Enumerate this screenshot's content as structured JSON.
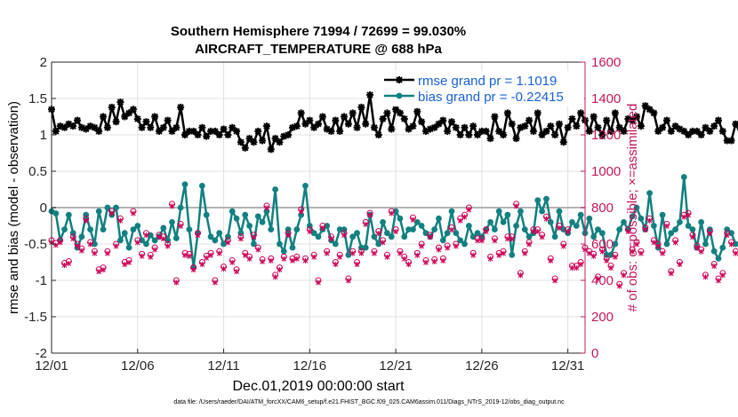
{
  "chart_data": {
    "type": "line",
    "title": [
      "Southern Hemisphere 71994 / 72699 = 99.030%",
      "AIRCRAFT_TEMPERATURE @ 688 hPa"
    ],
    "xlabel": "Dec.01,2019 00:00:00 start",
    "ylabel_left": "rmse and bias (model - observation)",
    "ylabel_right": "# of obs: o=possible; ×=assimilated",
    "x_ticks": [
      {
        "day": 1,
        "label": "12/01"
      },
      {
        "day": 6,
        "label": "12/06"
      },
      {
        "day": 11,
        "label": "12/11"
      },
      {
        "day": 16,
        "label": "12/16"
      },
      {
        "day": 21,
        "label": "12/21"
      },
      {
        "day": 26,
        "label": "12/26"
      },
      {
        "day": 31,
        "label": "12/31"
      }
    ],
    "xlim": [
      1,
      32
    ],
    "ylim_left": [
      -2,
      2
    ],
    "yticks_left": [
      "2",
      "1.5",
      "1",
      "0.5",
      "0",
      "-0.5",
      "-1",
      "-1.5",
      "-2"
    ],
    "ylim_right": [
      0,
      1600
    ],
    "yticks_right": [
      "1600",
      "1400",
      "1200",
      "1000",
      "800",
      "600",
      "400",
      "200",
      "0"
    ],
    "zero_line": 0,
    "legend": {
      "position": "top-right",
      "entries": [
        "rmse grand pr = 1.1019",
        "bias grand pr = -0.22415"
      ]
    },
    "series": [
      {
        "name": "rmse grand pr = 1.1019",
        "color": "#000000",
        "marker": "star",
        "axis": "left",
        "step_days": 0.25,
        "values": [
          1.35,
          1.05,
          1.12,
          1.1,
          1.15,
          1.12,
          1.2,
          1.1,
          1.08,
          1.12,
          1.1,
          1.05,
          1.25,
          1.1,
          1.38,
          1.18,
          1.45,
          1.25,
          1.3,
          1.35,
          1.22,
          1.1,
          1.18,
          1.1,
          1.25,
          1.05,
          1.1,
          1.2,
          1.05,
          1.1,
          1.38,
          1.0,
          1.05,
          1.05,
          1.0,
          1.1,
          0.98,
          1.05,
          1.05,
          1.0,
          1.08,
          1.0,
          1.1,
          1.05,
          0.9,
          0.82,
          0.95,
          0.9,
          1.05,
          0.92,
          1.12,
          0.8,
          0.95,
          0.9,
          0.98,
          1.0,
          1.1,
          1.12,
          1.3,
          1.15,
          1.2,
          1.1,
          1.15,
          1.25,
          1.08,
          1.05,
          1.2,
          1.05,
          1.25,
          1.15,
          1.3,
          1.1,
          1.38,
          1.15,
          1.55,
          1.1,
          1.0,
          1.22,
          1.3,
          1.08,
          1.35,
          1.3,
          1.22,
          1.08,
          1.12,
          1.32,
          1.18,
          1.05,
          1.08,
          1.1,
          1.15,
          1.2,
          1.05,
          1.18,
          1.1,
          1.0,
          1.1,
          1.0,
          1.12,
          1.0,
          1.05,
          1.05,
          0.95,
          1.25,
          1.05,
          1.0,
          1.3,
          1.15,
          0.95,
          1.1,
          1.12,
          1.2,
          1.05,
          1.3,
          1.0,
          1.05,
          1.12,
          1.0,
          1.15,
          0.9,
          1.1,
          1.22,
          1.12,
          1.3,
          1.2,
          1.05,
          1.25,
          1.1,
          1.0,
          1.2,
          1.05,
          1.3,
          1.1,
          1.05,
          1.22,
          1.2,
          1.25,
          1.12,
          1.4,
          1.35,
          1.3,
          1.05,
          1.1,
          1.2,
          1.05,
          1.12,
          1.08,
          1.05,
          1.0,
          1.05,
          1.05,
          1.0,
          1.1,
          1.05,
          1.12,
          1.2,
          1.05,
          0.92,
          0.92,
          1.15,
          1.1
        ]
      },
      {
        "name": "bias grand pr = -0.22415",
        "color": "#128080",
        "marker": "dot",
        "axis": "left",
        "step_days": 0.25,
        "values": [
          -0.05,
          -0.08,
          -0.45,
          -0.3,
          -0.1,
          -0.35,
          -0.55,
          -0.4,
          -0.1,
          -0.3,
          -0.5,
          -0.05,
          -0.3,
          0.0,
          -0.1,
          0.0,
          -0.45,
          -0.35,
          -0.55,
          -0.3,
          -0.25,
          -0.45,
          -0.5,
          -0.38,
          -0.45,
          -0.4,
          -0.28,
          -0.45,
          -0.2,
          -0.42,
          0.0,
          0.32,
          -0.3,
          -0.82,
          -0.35,
          0.3,
          -0.1,
          -0.4,
          -0.45,
          -0.35,
          -0.5,
          -0.4,
          -0.05,
          -0.15,
          -0.35,
          -0.1,
          -0.25,
          -0.5,
          -0.12,
          -0.2,
          -0.05,
          -0.3,
          0.25,
          -0.5,
          -0.6,
          -0.3,
          -0.55,
          -0.3,
          -0.1,
          0.3,
          -0.25,
          -0.35,
          -0.4,
          -0.3,
          -0.25,
          -0.45,
          -0.5,
          -0.3,
          -0.3,
          -0.65,
          -0.4,
          -0.35,
          -0.55,
          -0.55,
          -0.1,
          -0.4,
          -0.5,
          -0.2,
          -0.35,
          -0.4,
          -0.05,
          -0.15,
          -0.4,
          -0.3,
          -0.3,
          -0.2,
          -0.25,
          -0.35,
          -0.4,
          -0.3,
          -0.15,
          -0.45,
          -0.35,
          -0.05,
          -0.35,
          -0.45,
          -0.5,
          -0.25,
          -0.4,
          -0.35,
          -0.4,
          -0.3,
          -0.2,
          -0.3,
          -0.05,
          -0.2,
          -0.1,
          -0.65,
          -0.25,
          -0.05,
          -0.3,
          -0.4,
          -0.35,
          0.1,
          -0.05,
          0.12,
          -0.2,
          -0.4,
          -0.05,
          -0.3,
          -0.35,
          -0.2,
          -0.25,
          -0.1,
          -0.35,
          -0.15,
          -0.4,
          -0.3,
          -0.35,
          -0.65,
          -0.65,
          -0.5,
          -0.3,
          -0.2,
          -0.3,
          -0.12,
          0.0,
          -0.15,
          -0.3,
          0.2,
          -0.25,
          -0.55,
          -0.1,
          -0.5,
          -0.35,
          -0.3,
          -0.2,
          0.42,
          -0.25,
          -0.3,
          -0.55,
          -0.2,
          -0.5,
          -0.3,
          -0.6,
          -0.7,
          -0.55,
          -0.3,
          -0.35,
          -0.5
        ]
      },
      {
        "name": "possible",
        "color": "#cc0055",
        "marker": "circle",
        "axis": "right",
        "step_days": 0.25,
        "values": [
          620,
          605,
          620,
          495,
          505,
          640,
          600,
          575,
          740,
          610,
          560,
          460,
          470,
          560,
          780,
          600,
          740,
          500,
          510,
          780,
          620,
          545,
          660,
          540,
          580,
          650,
          640,
          600,
          820,
          400,
          710,
          550,
          545,
          470,
          660,
          500,
          535,
          550,
          400,
          560,
          475,
          620,
          510,
          460,
          640,
          550,
          530,
          650,
          580,
          515,
          810,
          520,
          430,
          470,
          530,
          660,
          520,
          530,
          790,
          520,
          680,
          540,
          400,
          700,
          560,
          640,
          500,
          540,
          660,
          410,
          560,
          500,
          560,
          720,
          770,
          560,
          670,
          620,
          540,
          780,
          680,
          560,
          530,
          500,
          745,
          550,
          600,
          510,
          650,
          515,
          580,
          520,
          590,
          690,
          600,
          740,
          760,
          800,
          550,
          630,
          630,
          680,
          530,
          630,
          550,
          560,
          640,
          640,
          820,
          440,
          560,
          610,
          680,
          680,
          650,
          750,
          520,
          410,
          700,
          600,
          680,
          480,
          480,
          500,
          580,
          560,
          545,
          420,
          570,
          520,
          480,
          540,
          380,
          440,
          680,
          570,
          610,
          560,
          690,
          740,
          620,
          600,
          560,
          710,
          450,
          620,
          500,
          760,
          770,
          650,
          590,
          570,
          430,
          670,
          490,
          410,
          440,
          660,
          610,
          560
        ]
      },
      {
        "name": "assimilated",
        "color": "#cc0055",
        "marker": "x",
        "axis": "right",
        "step_days": 0.25,
        "values": [
          608,
          593,
          608,
          483,
          493,
          628,
          588,
          563,
          728,
          598,
          548,
          448,
          458,
          548,
          768,
          588,
          728,
          488,
          498,
          768,
          608,
          533,
          648,
          528,
          568,
          638,
          628,
          588,
          808,
          388,
          698,
          538,
          533,
          458,
          648,
          488,
          523,
          538,
          388,
          548,
          463,
          608,
          498,
          448,
          628,
          538,
          518,
          638,
          568,
          503,
          798,
          508,
          418,
          458,
          518,
          648,
          508,
          518,
          778,
          508,
          668,
          528,
          388,
          688,
          548,
          628,
          488,
          528,
          648,
          398,
          548,
          488,
          548,
          708,
          758,
          548,
          658,
          608,
          528,
          768,
          668,
          548,
          518,
          488,
          733,
          538,
          588,
          498,
          638,
          503,
          568,
          508,
          578,
          678,
          588,
          728,
          748,
          788,
          538,
          618,
          618,
          668,
          518,
          618,
          538,
          548,
          628,
          628,
          808,
          428,
          548,
          598,
          668,
          668,
          638,
          738,
          508,
          398,
          688,
          588,
          668,
          468,
          468,
          488,
          568,
          548,
          533,
          408,
          558,
          508,
          468,
          528,
          368,
          428,
          668,
          558,
          598,
          548,
          678,
          728,
          608,
          588,
          548,
          698,
          438,
          608,
          488,
          748,
          758,
          638,
          578,
          558,
          418,
          658,
          478,
          398,
          428,
          648,
          598,
          548
        ]
      }
    ]
  },
  "footer": "data file: /Users/raeder/DAI/ATM_forcXX/CAM6_setup/f.e21.FHIST_BGC.f09_025.CAM6assim.011/Diags_NTrS_2019-12/obs_diag_output.nc",
  "colors": {
    "rmse": "#000000",
    "bias": "#128080",
    "obs": "#cc0055",
    "right_axis": "#c2185b",
    "legend_text": "#1a5fd6",
    "grid": "#e0e0e0"
  }
}
